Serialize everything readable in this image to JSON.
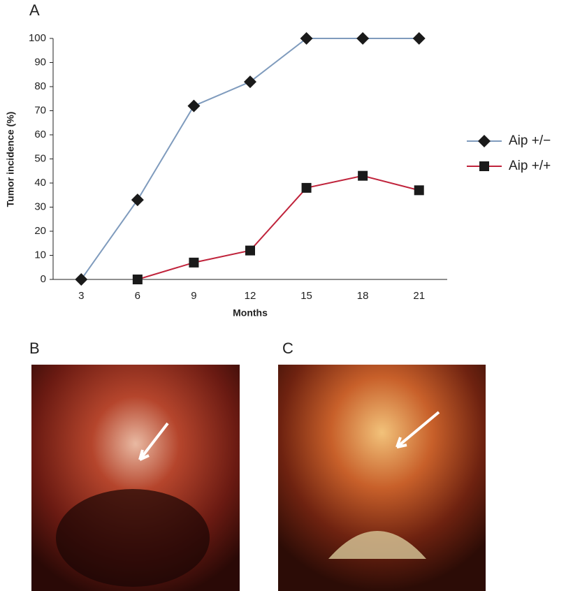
{
  "chart_data": {
    "type": "line",
    "label": "A",
    "xlabel": "Months",
    "ylabel": "Tumor incidence (%)",
    "categories": [
      "3",
      "6",
      "9",
      "12",
      "15",
      "18",
      "21"
    ],
    "series": [
      {
        "name": "Aip +/−",
        "color": "#7f9bbd",
        "marker": "diamond",
        "values": [
          0,
          33,
          72,
          82,
          100,
          100,
          100
        ]
      },
      {
        "name": "Aip +/+",
        "color": "#c0243c",
        "marker": "square",
        "values": [
          null,
          0,
          7,
          12,
          38,
          43,
          37
        ]
      }
    ],
    "ylim": [
      0,
      100
    ],
    "yticks": [
      0,
      10,
      20,
      30,
      40,
      50,
      60,
      70,
      80,
      90,
      100
    ],
    "grid": false,
    "legend": "right"
  },
  "panels": [
    {
      "label": "B"
    },
    {
      "label": "C"
    }
  ]
}
